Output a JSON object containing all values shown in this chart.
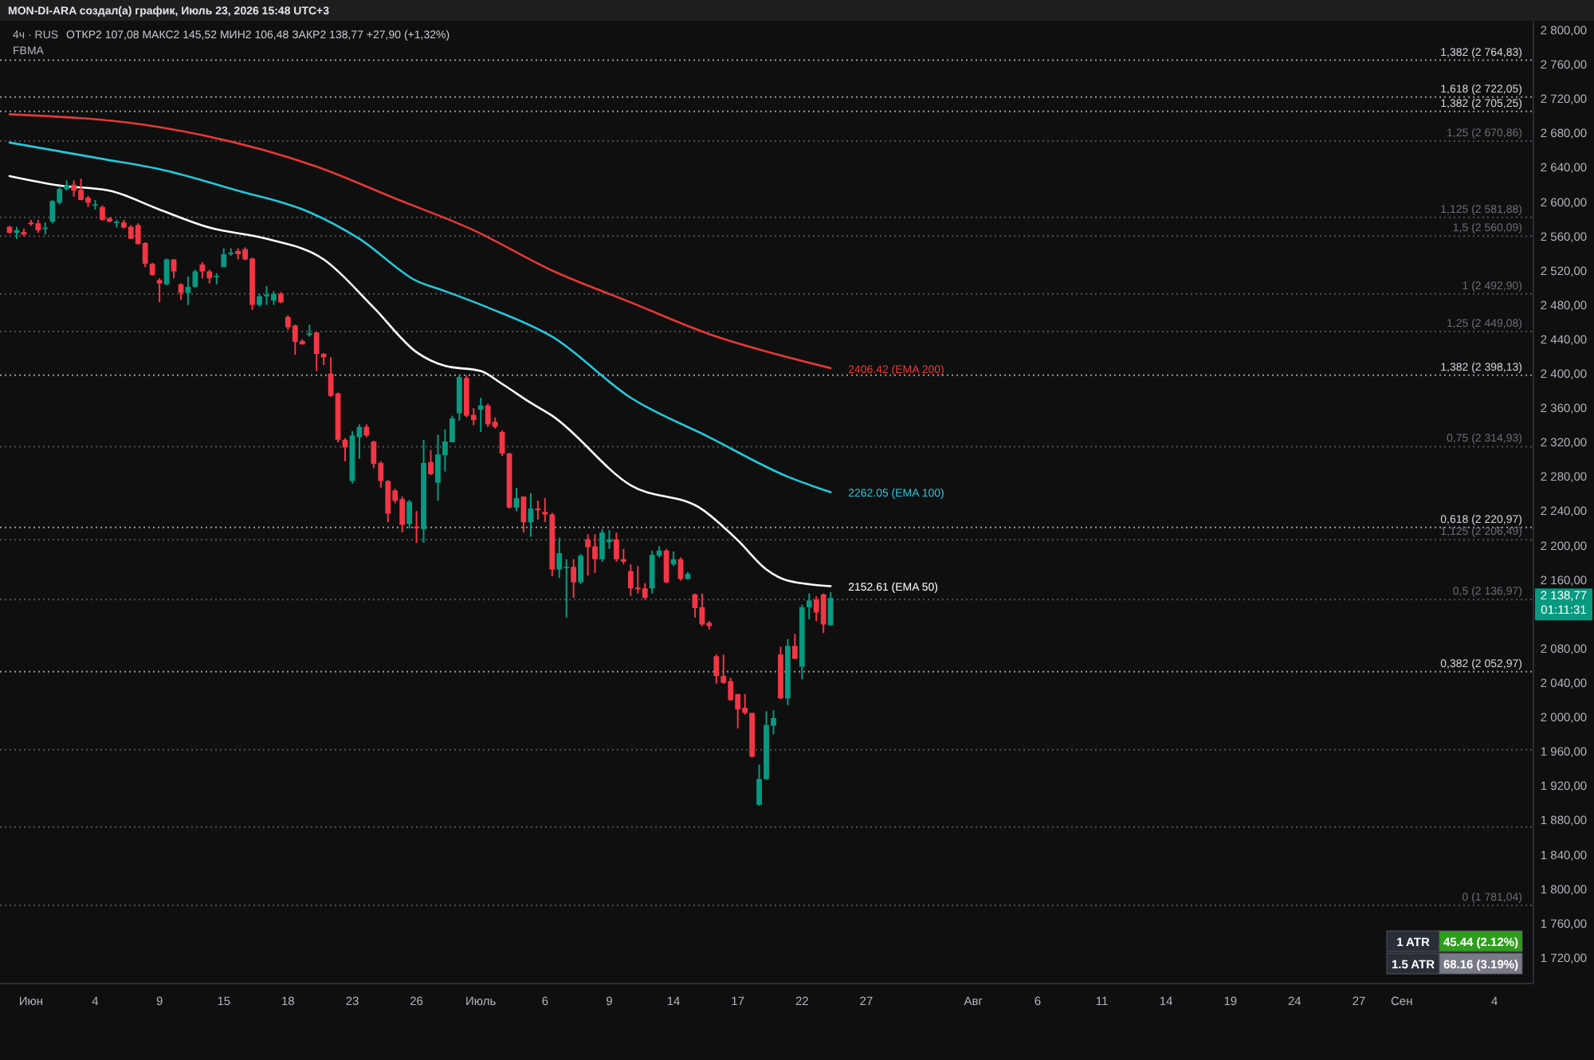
{
  "chart_data": {
    "type": "candlestick",
    "title": "4ч · RUS",
    "categories": [
      null,
      null,
      null,
      "Июн",
      null,
      null,
      null,
      null,
      null,
      null,
      null,
      null,
      "4",
      null,
      null,
      null,
      null,
      null,
      null,
      null,
      null,
      "9",
      null,
      null,
      null,
      null,
      null,
      null,
      null,
      null,
      "15",
      null,
      null,
      null,
      null,
      null,
      null,
      null,
      null,
      "18",
      null,
      null,
      null,
      null,
      null,
      null,
      null,
      null,
      "23",
      null,
      null,
      null,
      null,
      null,
      null,
      null,
      null,
      "26",
      null,
      null,
      null,
      null,
      null,
      null,
      null,
      null,
      "Июль",
      null,
      null,
      null,
      null,
      null,
      null,
      null,
      null,
      "6",
      null,
      null,
      null,
      null,
      null,
      null,
      null,
      null,
      "9",
      null,
      null,
      null,
      null,
      null,
      null,
      null,
      null,
      "14",
      null,
      null,
      null,
      null,
      null,
      null,
      null,
      null,
      "17",
      null,
      null,
      null,
      null,
      null,
      null,
      null,
      null,
      "22",
      null,
      null,
      null,
      null,
      null,
      null,
      null,
      null,
      "27",
      null,
      null,
      null,
      null,
      null,
      null,
      null,
      null,
      null,
      null,
      null,
      null,
      null,
      null,
      "Авг",
      null,
      null,
      null,
      null,
      null,
      null,
      null,
      null,
      "6",
      null,
      null,
      null,
      null,
      null,
      null,
      null,
      null,
      "11",
      null,
      null,
      null,
      null,
      null,
      null,
      null,
      null,
      "14",
      null,
      null,
      null,
      null,
      null,
      null,
      null,
      null,
      "19",
      null,
      null,
      null,
      null,
      null,
      null,
      null,
      null,
      "24",
      null,
      null,
      null,
      null,
      null,
      null,
      null,
      null,
      "27",
      null,
      null,
      null,
      null,
      null,
      "Сен",
      null,
      null,
      null,
      null,
      null,
      null,
      null,
      null,
      null,
      null,
      null,
      null,
      "4",
      null,
      null,
      null,
      null,
      null
    ],
    "ohlc": [
      [
        2571,
        2572,
        2563,
        2564
      ],
      [
        2564,
        2571,
        2557,
        2567
      ],
      [
        2565,
        2569,
        2560,
        2562
      ],
      [
        2576,
        2579,
        2572,
        2574
      ],
      [
        2575,
        2579,
        2564,
        2567
      ],
      [
        2569,
        2576,
        2562,
        2570
      ],
      [
        2577,
        2602,
        2575,
        2601
      ],
      [
        2599,
        2617,
        2597,
        2615
      ],
      [
        2615,
        2625,
        2613,
        2619
      ],
      [
        2620,
        2625,
        2606,
        2613
      ],
      [
        2614,
        2627,
        2602,
        2602
      ],
      [
        2605,
        2607,
        2594,
        2599
      ],
      [
        2596,
        2602,
        2591,
        2597
      ],
      [
        2594,
        2596,
        2578,
        2579
      ],
      [
        2581,
        2582,
        2576,
        2577
      ],
      [
        2576,
        2579,
        2570,
        2577
      ],
      [
        2576,
        2579,
        2569,
        2570
      ],
      [
        2571,
        2573,
        2557,
        2557
      ],
      [
        2573,
        2575,
        2550,
        2551
      ],
      [
        2552,
        2553,
        2524,
        2528
      ],
      [
        2528,
        2529,
        2514,
        2515
      ],
      [
        2509,
        2511,
        2483,
        2505
      ],
      [
        2504,
        2534,
        2503,
        2533
      ],
      [
        2533,
        2533,
        2511,
        2519
      ],
      [
        2504,
        2505,
        2486,
        2494
      ],
      [
        2494,
        2513,
        2480,
        2501
      ],
      [
        2501,
        2521,
        2500,
        2519
      ],
      [
        2527,
        2530,
        2511,
        2519
      ],
      [
        2519,
        2521,
        2505,
        2511
      ],
      [
        2513,
        2517,
        2504,
        2514
      ],
      [
        2524,
        2546,
        2524,
        2539
      ],
      [
        2539,
        2546,
        2537,
        2541
      ],
      [
        2543,
        2546,
        2533,
        2539
      ],
      [
        2545,
        2547,
        2532,
        2533
      ],
      [
        2534,
        2535,
        2474,
        2480
      ],
      [
        2480,
        2493,
        2478,
        2490
      ],
      [
        2490,
        2502,
        2480,
        2492
      ],
      [
        2485,
        2496,
        2480,
        2493
      ],
      [
        2493,
        2495,
        2482,
        2483
      ],
      [
        2466,
        2468,
        2451,
        2454
      ],
      [
        2456,
        2457,
        2422,
        2437
      ],
      [
        2438,
        2440,
        2434,
        2434
      ],
      [
        2445,
        2457,
        2443,
        2447
      ],
      [
        2448,
        2448,
        2403,
        2423
      ],
      [
        2423,
        2424,
        2410,
        2419
      ],
      [
        2400,
        2419,
        2373,
        2374
      ],
      [
        2377,
        2378,
        2320,
        2323
      ],
      [
        2323,
        2325,
        2298,
        2314
      ],
      [
        2275,
        2333,
        2272,
        2328
      ],
      [
        2326,
        2341,
        2301,
        2338
      ],
      [
        2338,
        2341,
        2326,
        2328
      ],
      [
        2321,
        2322,
        2290,
        2295
      ],
      [
        2296,
        2298,
        2267,
        2275
      ],
      [
        2275,
        2276,
        2227,
        2237
      ],
      [
        2264,
        2266,
        2249,
        2252
      ],
      [
        2254,
        2257,
        2215,
        2224
      ],
      [
        2225,
        2253,
        2220,
        2251
      ],
      [
        2222,
        2240,
        2203,
        2220
      ],
      [
        2219,
        2323,
        2203,
        2296
      ],
      [
        2297,
        2311,
        2282,
        2283
      ],
      [
        2273,
        2329,
        2252,
        2306
      ],
      [
        2305,
        2335,
        2286,
        2321
      ],
      [
        2320,
        2351,
        2320,
        2348
      ],
      [
        2354,
        2398,
        2345,
        2396
      ],
      [
        2395,
        2398,
        2349,
        2351
      ],
      [
        2352,
        2360,
        2340,
        2346
      ],
      [
        2358,
        2372,
        2332,
        2363
      ],
      [
        2363,
        2365,
        2338,
        2341
      ],
      [
        2344,
        2349,
        2336,
        2338
      ],
      [
        2332,
        2334,
        2304,
        2307
      ],
      [
        2307,
        2308,
        2243,
        2244
      ],
      [
        2244,
        2267,
        2240,
        2255
      ],
      [
        2257,
        2257,
        2215,
        2227
      ],
      [
        2227,
        2261,
        2210,
        2243
      ],
      [
        2243,
        2252,
        2230,
        2241
      ],
      [
        2239,
        2255,
        2227,
        2236
      ],
      [
        2236,
        2238,
        2164,
        2172
      ],
      [
        2172,
        2209,
        2162,
        2191
      ],
      [
        2174,
        2184,
        2116,
        2175
      ],
      [
        2175,
        2184,
        2139,
        2157
      ],
      [
        2157,
        2190,
        2155,
        2188
      ],
      [
        2207,
        2213,
        2165,
        2198
      ],
      [
        2199,
        2213,
        2168,
        2184
      ],
      [
        2184,
        2219,
        2181,
        2215
      ],
      [
        2204,
        2218,
        2196,
        2207
      ],
      [
        2207,
        2215,
        2181,
        2184
      ],
      [
        2184,
        2196,
        2178,
        2181
      ],
      [
        2170,
        2178,
        2141,
        2150
      ],
      [
        2151,
        2176,
        2144,
        2149
      ],
      [
        2150,
        2156,
        2137,
        2139
      ],
      [
        2150,
        2194,
        2144,
        2189
      ],
      [
        2188,
        2199,
        2186,
        2194
      ],
      [
        2194,
        2196,
        2156,
        2157
      ],
      [
        2178,
        2193,
        2176,
        2184
      ],
      [
        2184,
        2186,
        2159,
        2161
      ],
      [
        2161,
        2169,
        2160,
        2167
      ],
      [
        2143,
        2144,
        2116,
        2127
      ],
      [
        2128,
        2144,
        2106,
        2108
      ],
      [
        2110,
        2112,
        2102,
        2106
      ],
      [
        2071,
        2073,
        2039,
        2048
      ],
      [
        2048,
        2073,
        2039,
        2040
      ],
      [
        2042,
        2046,
        2019,
        2020
      ],
      [
        2027,
        2027,
        1987,
        2009
      ],
      [
        2011,
        2027,
        2003,
        2005
      ],
      [
        2005,
        2005,
        1953,
        1954
      ],
      [
        1898,
        1945,
        1897,
        1928
      ],
      [
        1928,
        2007,
        1927,
        1991
      ],
      [
        1990,
        2008,
        1980,
        1999
      ],
      [
        2073,
        2082,
        2021,
        2022
      ],
      [
        2022,
        2091,
        2014,
        2083
      ],
      [
        2083,
        2097,
        2068,
        2068
      ],
      [
        2059,
        2131,
        2044,
        2128
      ],
      [
        2128,
        2144,
        2114,
        2136
      ],
      [
        2137,
        2141,
        2112,
        2122
      ],
      [
        2143,
        2144,
        2098,
        2108
      ],
      [
        2107.08,
        2145.52,
        2106.48,
        2138.77
      ],
      null,
      null,
      null,
      null,
      null,
      null,
      null,
      null,
      null,
      null,
      null,
      null,
      null,
      null,
      null,
      null,
      null,
      null,
      null,
      null,
      null,
      null,
      null,
      null,
      null,
      null,
      null,
      null,
      null,
      null,
      null,
      null,
      null,
      null,
      null,
      null,
      null,
      null,
      null,
      null,
      null,
      null,
      null,
      null,
      null,
      null,
      null,
      null,
      null,
      null,
      null,
      null,
      null,
      null,
      null,
      null,
      null,
      null,
      null,
      null,
      null,
      null,
      null,
      null,
      null,
      null,
      null,
      null,
      null,
      null,
      null,
      null,
      null,
      null,
      null,
      null,
      null,
      null,
      null,
      null,
      null,
      null,
      null,
      null,
      null,
      null,
      null,
      null,
      null,
      null,
      null,
      null,
      null,
      null,
      null,
      null,
      null,
      null
    ],
    "series": [
      {
        "type": "line",
        "name": "2406.42 (EMA 200)",
        "color": "#e53935",
        "values": [
          2702,
          null,
          null,
          null,
          null,
          null,
          null,
          null,
          null,
          null,
          null,
          null,
          null,
          null,
          null,
          null,
          null,
          null,
          null,
          null,
          null,
          2687,
          null,
          null,
          null,
          null,
          null,
          null,
          null,
          null,
          null,
          null,
          null,
          null,
          null,
          null,
          null,
          null,
          null,
          null,
          null,
          null,
          null,
          2641,
          null,
          null,
          null,
          null,
          null,
          null,
          null,
          null,
          null,
          null,
          2604,
          null,
          null,
          null,
          null,
          null,
          null,
          null,
          null,
          null,
          null,
          2567,
          null,
          null,
          null,
          null,
          null,
          null,
          null,
          null,
          null,
          null,
          2520,
          null,
          null,
          null,
          null,
          null,
          null,
          null,
          null,
          null,
          null,
          2483,
          null,
          null,
          null,
          null,
          null,
          null,
          null,
          null,
          null,
          null,
          2446,
          null,
          null,
          null,
          null,
          null,
          null,
          null,
          null,
          null,
          null,
          2419,
          null,
          null,
          null,
          null,
          null,
          2406.42,
          null,
          null,
          null,
          null,
          null,
          null,
          null,
          null,
          null,
          null,
          null,
          null,
          null,
          null,
          null,
          null,
          null,
          null,
          null,
          null,
          null,
          null,
          null,
          null,
          null,
          null,
          null,
          null,
          null,
          null,
          null,
          null,
          null,
          null,
          null,
          null,
          null,
          null,
          null,
          null,
          null,
          null,
          null,
          null,
          null,
          null,
          null,
          null,
          null,
          null,
          null,
          null,
          null,
          null,
          null,
          null,
          null,
          null,
          null,
          null,
          null,
          null,
          null,
          null,
          null,
          null,
          null,
          null,
          null,
          null,
          null,
          null,
          null,
          null,
          null,
          null,
          null,
          null,
          null,
          null,
          null,
          null,
          null,
          null,
          null,
          null,
          null,
          null,
          null,
          null,
          null,
          null,
          null,
          null,
          null,
          null,
          null,
          null
        ]
      },
      {
        "type": "line",
        "name": "2262.05 (EMA 100)",
        "color": "#26c6da",
        "values": [
          2669,
          null,
          null,
          null,
          null,
          null,
          null,
          null,
          null,
          null,
          null,
          null,
          null,
          2650,
          null,
          null,
          null,
          null,
          null,
          null,
          null,
          2638,
          null,
          null,
          null,
          null,
          null,
          null,
          null,
          null,
          null,
          null,
          2613,
          null,
          null,
          null,
          null,
          null,
          null,
          null,
          null,
          null,
          2588,
          null,
          null,
          null,
          null,
          null,
          null,
          2557,
          null,
          null,
          null,
          null,
          null,
          null,
          null,
          2508,
          null,
          null,
          null,
          2496,
          null,
          null,
          null,
          null,
          null,
          2477,
          null,
          null,
          null,
          null,
          null,
          null,
          null,
          null,
          2443,
          null,
          null,
          null,
          null,
          null,
          null,
          null,
          null,
          null,
          null,
          2372,
          null,
          null,
          null,
          null,
          null,
          null,
          null,
          null,
          null,
          null,
          2326,
          null,
          null,
          null,
          null,
          null,
          null,
          null,
          null,
          null,
          null,
          2280,
          null,
          null,
          null,
          null,
          null,
          2262.05,
          null,
          null,
          null,
          null,
          null,
          null,
          null,
          null,
          null,
          null,
          null,
          null,
          null,
          null,
          null,
          null,
          null,
          null,
          null,
          null,
          null,
          null,
          null,
          null,
          null,
          null,
          null,
          null,
          null,
          null,
          null,
          null,
          null,
          null,
          null,
          null,
          null,
          null,
          null,
          null,
          null,
          null,
          null,
          null,
          null,
          null,
          null,
          null,
          null,
          null,
          null,
          null,
          null,
          null,
          null,
          null,
          null,
          null,
          null,
          null,
          null,
          null,
          null,
          null,
          null,
          null,
          null,
          null,
          null,
          null,
          null,
          null,
          null,
          null,
          null,
          null,
          null,
          null,
          null,
          null,
          null,
          null,
          null,
          null,
          null,
          null,
          null,
          null,
          null,
          null,
          null,
          null,
          null,
          null,
          null,
          null,
          null,
          null
        ]
      },
      {
        "type": "line",
        "name": "2152.61 (EMA 50)",
        "color": "#ffffff",
        "values": [
          2630,
          null,
          null,
          null,
          null,
          null,
          null,
          2619,
          null,
          null,
          null,
          null,
          null,
          null,
          2613,
          null,
          null,
          null,
          null,
          null,
          null,
          2591,
          null,
          null,
          null,
          null,
          null,
          null,
          2570,
          null,
          null,
          null,
          null,
          null,
          null,
          null,
          2557,
          null,
          null,
          null,
          null,
          null,
          null,
          null,
          2533,
          null,
          null,
          null,
          null,
          null,
          null,
          2477,
          null,
          null,
          null,
          null,
          null,
          2425,
          null,
          null,
          null,
          2409,
          null,
          null,
          null,
          null,
          2403,
          null,
          null,
          2388,
          null,
          null,
          null,
          2366,
          null,
          null,
          2351,
          null,
          null,
          null,
          null,
          null,
          null,
          null,
          null,
          null,
          null,
          2270,
          null,
          null,
          null,
          null,
          null,
          null,
          null,
          null,
          null,
          2242,
          null,
          null,
          null,
          null,
          2206,
          null,
          null,
          null,
          2172,
          null,
          null,
          2159,
          null,
          null,
          null,
          null,
          null,
          2152.61,
          null,
          null,
          null,
          null,
          null,
          null,
          null,
          null,
          null,
          null,
          null,
          null,
          null,
          null,
          null,
          null,
          null,
          null,
          null,
          null,
          null,
          null,
          null,
          null,
          null,
          null,
          null,
          null,
          null,
          null,
          null,
          null,
          null,
          null,
          null,
          null,
          null,
          null,
          null,
          null,
          null,
          null,
          null,
          null,
          null,
          null,
          null,
          null,
          null,
          null,
          null,
          null,
          null,
          null,
          null,
          null,
          null,
          null,
          null,
          null,
          null,
          null,
          null,
          null,
          null,
          null,
          null,
          null,
          null,
          null,
          null,
          null,
          null,
          null,
          null,
          null,
          null,
          null,
          null,
          null,
          null,
          null,
          null,
          null,
          null,
          null,
          null,
          null,
          null,
          null,
          null,
          null,
          null,
          null,
          null,
          null,
          null,
          null
        ]
      }
    ],
    "ylim": [
      1690,
      2835
    ],
    "yticks": [
      {
        "value": 1720,
        "label": "1 720,00"
      },
      {
        "value": 1760,
        "label": "1 760,00"
      },
      {
        "value": 1800,
        "label": "1 800,00"
      },
      {
        "value": 1840,
        "label": "1 840,00"
      },
      {
        "value": 1880,
        "label": "1 880,00"
      },
      {
        "value": 1920,
        "label": "1 920,00"
      },
      {
        "value": 1960,
        "label": "1 960,00"
      },
      {
        "value": 2000,
        "label": "2 000,00"
      },
      {
        "value": 2040,
        "label": "2 040,00"
      },
      {
        "value": 2080,
        "label": "2 080,00"
      },
      {
        "value": 2160,
        "label": "2 160,00"
      },
      {
        "value": 2200,
        "label": "2 200,00"
      },
      {
        "value": 2240,
        "label": "2 240,00"
      },
      {
        "value": 2280,
        "label": "2 280,00"
      },
      {
        "value": 2320,
        "label": "2 320,00"
      },
      {
        "value": 2360,
        "label": "2 360,00"
      },
      {
        "value": 2400,
        "label": "2 400,00"
      },
      {
        "value": 2440,
        "label": "2 440,00"
      },
      {
        "value": 2480,
        "label": "2 480,00"
      },
      {
        "value": 2520,
        "label": "2 520,00"
      },
      {
        "value": 2560,
        "label": "2 560,00"
      },
      {
        "value": 2600,
        "label": "2 600,00"
      },
      {
        "value": 2640,
        "label": "2 640,00"
      },
      {
        "value": 2680,
        "label": "2 680,00"
      },
      {
        "value": 2720,
        "label": "2 720,00"
      },
      {
        "value": 2760,
        "label": "2 760,00"
      },
      {
        "value": 2800,
        "label": "2 800,00"
      }
    ],
    "ref_lines": [
      {
        "axis": "y",
        "value": 2764.83,
        "label": "1,382 (2 764,83)",
        "color": "#d1d4dc",
        "line_style": "dotted"
      },
      {
        "axis": "y",
        "value": 2722.05,
        "label": "1,618 (2 722,05)",
        "color": "#d1d4dc",
        "line_style": "dotted"
      },
      {
        "axis": "y",
        "value": 2705.25,
        "label": "1,382 (2 705,25)",
        "color": "#d1d4dc",
        "line_style": "dotted"
      },
      {
        "axis": "y",
        "value": 2670.86,
        "label": "1,25 (2 670,86)",
        "color": "#6a6d78",
        "line_style": "dotted"
      },
      {
        "axis": "y",
        "value": 2581.88,
        "label": "1,125 (2 581,88)",
        "color": "#6a6d78",
        "line_style": "dotted"
      },
      {
        "axis": "y",
        "value": 2560.09,
        "label": "1,5 (2 560,09)",
        "color": "#6a6d78",
        "line_style": "dotted"
      },
      {
        "axis": "y",
        "value": 2492.9,
        "label": "1 (2 492,90)",
        "color": "#6a6d78",
        "line_style": "dotted"
      },
      {
        "axis": "y",
        "value": 2449.08,
        "label": "1,25 (2 449,08)",
        "color": "#6a6d78",
        "line_style": "dotted"
      },
      {
        "axis": "y",
        "value": 2398.13,
        "label": "1,382 (2 398,13)",
        "color": "#d1d4dc",
        "line_style": "dotted"
      },
      {
        "axis": "y",
        "value": 2314.93,
        "label": "0,75 (2 314,93)",
        "color": "#6a6d78",
        "line_style": "dotted"
      },
      {
        "axis": "y",
        "value": 2220.97,
        "label": "0,618 (2 220,97)",
        "color": "#d1d4dc",
        "line_style": "dotted"
      },
      {
        "axis": "y",
        "value": 2206.49,
        "label": "1,125 (2 206,49)",
        "color": "#6a6d78",
        "line_style": "dotted"
      },
      {
        "axis": "y",
        "value": 2136.97,
        "label": "0,5 (2 136,97)",
        "color": "#6a6d78",
        "line_style": "dotted"
      },
      {
        "axis": "y",
        "value": 2052.97,
        "label": "0,382 (2 052,97)",
        "color": "#d1d4dc",
        "line_style": "dotted"
      },
      {
        "axis": "y",
        "value": 1962,
        "label": null,
        "color": "#6a6d78",
        "line_style": "dotted"
      },
      {
        "axis": "y",
        "value": 1872,
        "label": null,
        "color": "#6a6d78",
        "line_style": "dotted"
      },
      {
        "axis": "y",
        "value": 1781.04,
        "label": "0 (1 781,04)",
        "color": "#6a6d78",
        "line_style": "dotted"
      }
    ],
    "annotations": [
      "MON-DI-ARA создал(а) график, Июль 23, 2026 15:48 UTC+3",
      "ОТКР2 107,08  МАКС2 145,52  МИН2 106,48  ЗАКР2 138,77  +27,90 (+1,32%)",
      "FBMA",
      "2 138,77",
      "01:11:31",
      "1 ATR",
      "45.44 (2.12%)",
      "1.5 ATR",
      "68.16 (3.19%)"
    ]
  }
}
